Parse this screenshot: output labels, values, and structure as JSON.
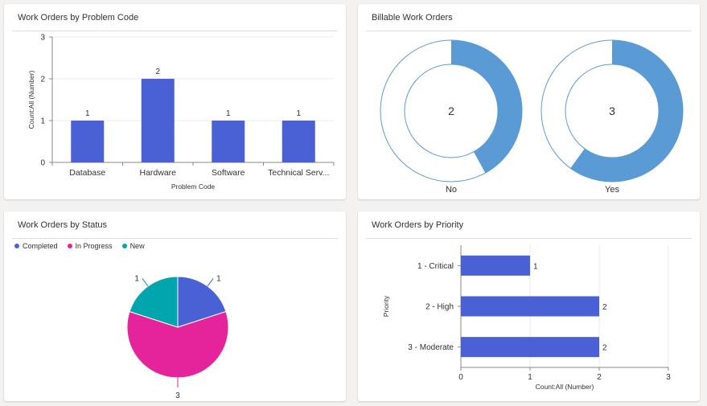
{
  "colors": {
    "bar": "#4a61d6",
    "donut_fill": "#5b9bd5",
    "donut_ring": "#5b9bd5",
    "completed": "#4a61d6",
    "in_progress": "#e5239a",
    "new": "#00a5ad"
  },
  "panels": {
    "problem_code": {
      "title": "Work Orders by Problem Code"
    },
    "billable": {
      "title": "Billable Work Orders"
    },
    "status": {
      "title": "Work Orders by Status"
    },
    "priority": {
      "title": "Work Orders by Priority"
    }
  },
  "chart_data": [
    {
      "id": "problem_code",
      "type": "bar",
      "title": "Work Orders by Problem Code",
      "categories": [
        "Database",
        "Hardware",
        "Software",
        "Technical Serv..."
      ],
      "values": [
        1,
        2,
        1,
        1
      ],
      "xlabel": "Problem Code",
      "ylabel": "Count:All (Number)",
      "ylim": [
        0,
        3
      ],
      "yticks": [
        0,
        1,
        2,
        3
      ],
      "grid": true,
      "data_labels": true
    },
    {
      "id": "billable",
      "type": "pie",
      "variant": "donut",
      "title": "Billable Work Orders",
      "series": [
        {
          "name": "No",
          "total": 2,
          "filled_fraction": 0.42
        },
        {
          "name": "Yes",
          "total": 3,
          "filled_fraction": 0.6
        }
      ]
    },
    {
      "id": "status",
      "type": "pie",
      "title": "Work Orders by Status",
      "legend": [
        "Completed",
        "In Progress",
        "New"
      ],
      "legend_position": "top-left",
      "slices": [
        {
          "name": "Completed",
          "value": 1
        },
        {
          "name": "In Progress",
          "value": 3
        },
        {
          "name": "New",
          "value": 1
        }
      ]
    },
    {
      "id": "priority",
      "type": "bar",
      "orientation": "horizontal",
      "title": "Work Orders by Priority",
      "categories": [
        "1 - Critical",
        "2 - High",
        "3 - Moderate"
      ],
      "values": [
        1,
        2,
        2
      ],
      "xlabel": "Count:All (Number)",
      "ylabel": "Priority",
      "xlim": [
        0,
        3
      ],
      "xticks": [
        0,
        1,
        2,
        3
      ],
      "grid": true,
      "data_labels": true
    }
  ]
}
